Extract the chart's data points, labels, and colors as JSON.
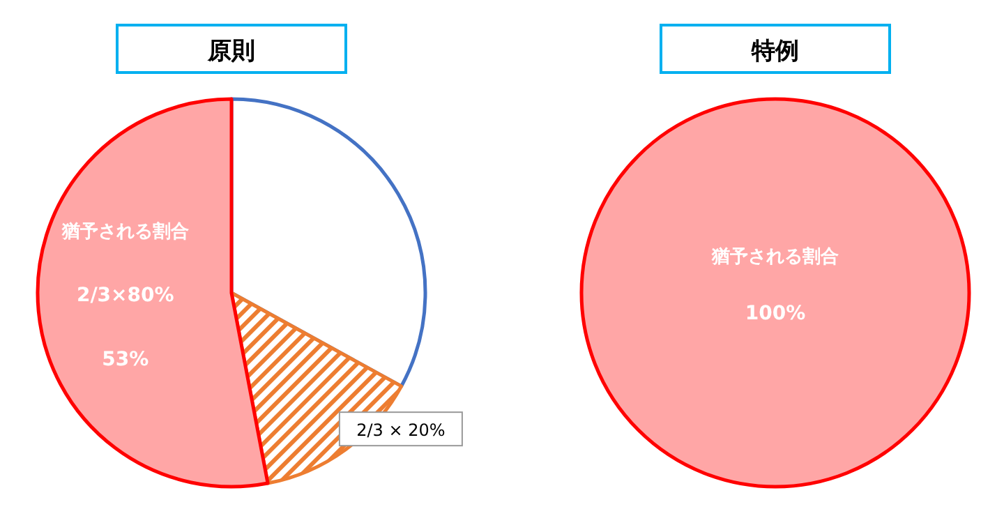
{
  "chart_data": [
    {
      "type": "pie",
      "title": "原則",
      "categories": [
        null,
        "2/3 × 20%",
        "猶予される割合"
      ],
      "values": [
        33,
        14,
        53
      ],
      "colors": [
        "#ffffff",
        "#ed7d31",
        "#ffa6a6"
      ],
      "value_labels": [
        null,
        null,
        "53%"
      ],
      "annotations": [
        "2/3×80%"
      ]
    },
    {
      "type": "pie",
      "title": "特例",
      "categories": [
        "猶予される割合"
      ],
      "values": [
        100
      ],
      "colors": [
        "#ffa6a6"
      ],
      "value_labels": [
        "100%"
      ]
    }
  ]
}
